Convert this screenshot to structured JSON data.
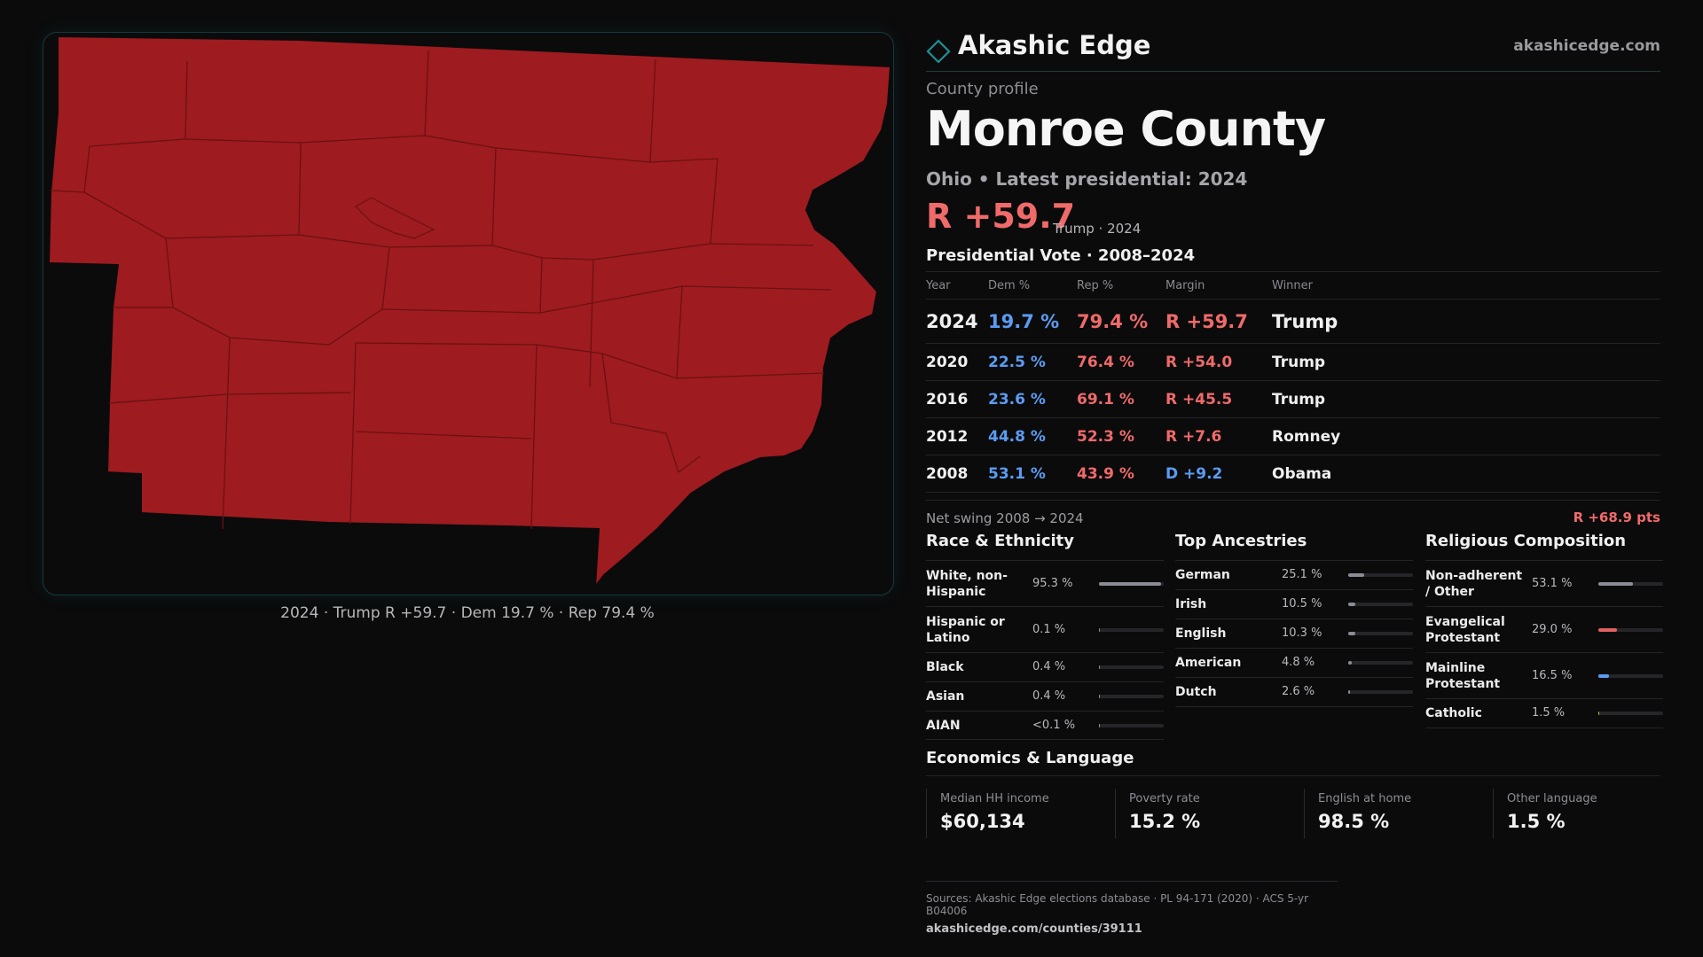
{
  "map": {
    "caption": "2024 · Trump R +59.7 · Dem 19.7 % · Rep 79.4 %",
    "fill_color": "#9e1b1f",
    "border_color": "#0b0b0c"
  },
  "header": {
    "brand_name": "Akashic Edge",
    "brand_url": "akashicedge.com",
    "brand_icon": "diamond-icon"
  },
  "profile": {
    "eyebrow": "County profile",
    "county_name": "Monroe County",
    "subtitle": "Ohio • Latest presidential: 2024",
    "margin_big": "R +59.7",
    "margin_note": "Trump · 2024"
  },
  "vote_table": {
    "title": "Presidential Vote · 2008–2024",
    "headers": {
      "year": "Year",
      "dem": "Dem %",
      "rep": "Rep %",
      "margin": "Margin",
      "winner": "Winner"
    },
    "rows": [
      {
        "year": "2024",
        "dem": "19.7 %",
        "rep": "79.4 %",
        "margin": "R +59.7",
        "winner": "Trump",
        "party": "R"
      },
      {
        "year": "2020",
        "dem": "22.5 %",
        "rep": "76.4 %",
        "margin": "R +54.0",
        "winner": "Trump",
        "party": "R"
      },
      {
        "year": "2016",
        "dem": "23.6 %",
        "rep": "69.1 %",
        "margin": "R +45.5",
        "winner": "Trump",
        "party": "R"
      },
      {
        "year": "2012",
        "dem": "44.8 %",
        "rep": "52.3 %",
        "margin": "R +7.6",
        "winner": "Romney",
        "party": "R"
      },
      {
        "year": "2008",
        "dem": "53.1 %",
        "rep": "43.9 %",
        "margin": "D +9.2",
        "winner": "Obama",
        "party": "D"
      }
    ]
  },
  "swing": {
    "label": "Net swing 2008 → 2024",
    "value": "R +68.9 pts"
  },
  "race": {
    "title": "Race & Ethnicity",
    "bar_color": "#8a8d96",
    "rows": [
      {
        "label": "White, non-Hispanic",
        "value": "95.3 %",
        "share": 0.953
      },
      {
        "label": "Hispanic or Latino",
        "value": "0.1 %",
        "share": 0.001
      },
      {
        "label": "Black",
        "value": "0.4 %",
        "share": 0.004
      },
      {
        "label": "Asian",
        "value": "0.4 %",
        "share": 0.004
      },
      {
        "label": "AIAN",
        "value": "<0.1 %",
        "share": 0.0005
      }
    ]
  },
  "ancestry": {
    "title": "Top Ancestries",
    "bar_color": "#8a8d96",
    "rows": [
      {
        "label": "German",
        "value": "25.1 %",
        "share": 0.251
      },
      {
        "label": "Irish",
        "value": "10.5 %",
        "share": 0.105
      },
      {
        "label": "English",
        "value": "10.3 %",
        "share": 0.103
      },
      {
        "label": "American",
        "value": "4.8 %",
        "share": 0.048
      },
      {
        "label": "Dutch",
        "value": "2.6 %",
        "share": 0.026
      }
    ]
  },
  "religion": {
    "title": "Religious Composition",
    "rows": [
      {
        "label": "Non-adherent / Other",
        "value": "53.1 %",
        "share": 0.531,
        "color": "#8a8d96"
      },
      {
        "label": "Evangelical Protestant",
        "value": "29.0 %",
        "share": 0.29,
        "color": "#e2625f"
      },
      {
        "label": "Mainline Protestant",
        "value": "16.5 %",
        "share": 0.165,
        "color": "#5b9cf2"
      },
      {
        "label": "Catholic",
        "value": "1.5 %",
        "share": 0.015,
        "color": "#c9a23c"
      }
    ]
  },
  "economics": {
    "title": "Economics & Language",
    "cards": [
      {
        "label": "Median HH income",
        "value": "$60,134"
      },
      {
        "label": "Poverty rate",
        "value": "15.2 %"
      },
      {
        "label": "English at home",
        "value": "98.5 %"
      },
      {
        "label": "Other language",
        "value": "1.5 %"
      }
    ]
  },
  "sources": {
    "line": "Sources: Akashic Edge elections database · PL 94-171 (2020) · ACS 5-yr B04006",
    "url": "akashicedge.com/counties/39111"
  }
}
